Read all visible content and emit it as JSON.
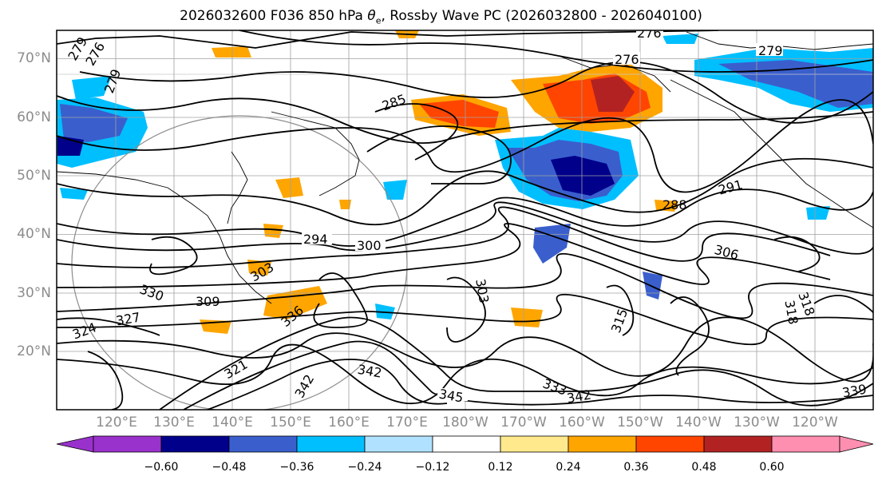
{
  "title": "2026032600 F036 850 hPa θe, Rossby Wave PC (2026032800 - 2026040100)",
  "title_parts": {
    "prefix": "2026032600 F036 850 hPa ",
    "theta": "θ",
    "subscript": "e",
    "suffix": ", Rossby Wave PC (2026032800 - 2026040100)"
  },
  "lat_labels": [
    "70°N",
    "60°N",
    "50°N",
    "40°N",
    "30°N",
    "20°N"
  ],
  "lon_labels": [
    "120°E",
    "130°E",
    "140°E",
    "150°E",
    "160°E",
    "170°E",
    "180°W",
    "170°W",
    "160°W",
    "150°W",
    "140°W",
    "130°W",
    "120°W"
  ],
  "colorbar": {
    "ticks": [
      "−0.60",
      "−0.48",
      "−0.36",
      "−0.24",
      "−0.12",
      "0.12",
      "0.24",
      "0.36",
      "0.48",
      "0.60"
    ],
    "colors": [
      "#9932cc",
      "#00008b",
      "#3a5fcd",
      "#00bfff",
      "#b0e2ff",
      "#ffffff",
      "#ffe98c",
      "#ffa500",
      "#ff4500",
      "#b22222",
      "#ff8fb0"
    ]
  },
  "contour_labels": [
    "276",
    "279",
    "276",
    "279",
    "276",
    "279",
    "285",
    "288",
    "291",
    "294",
    "300",
    "303",
    "306",
    "303",
    "309",
    "318",
    "315",
    "321",
    "324",
    "327",
    "330",
    "333",
    "336",
    "342",
    "342",
    "345",
    "342",
    "339",
    "318"
  ]
}
